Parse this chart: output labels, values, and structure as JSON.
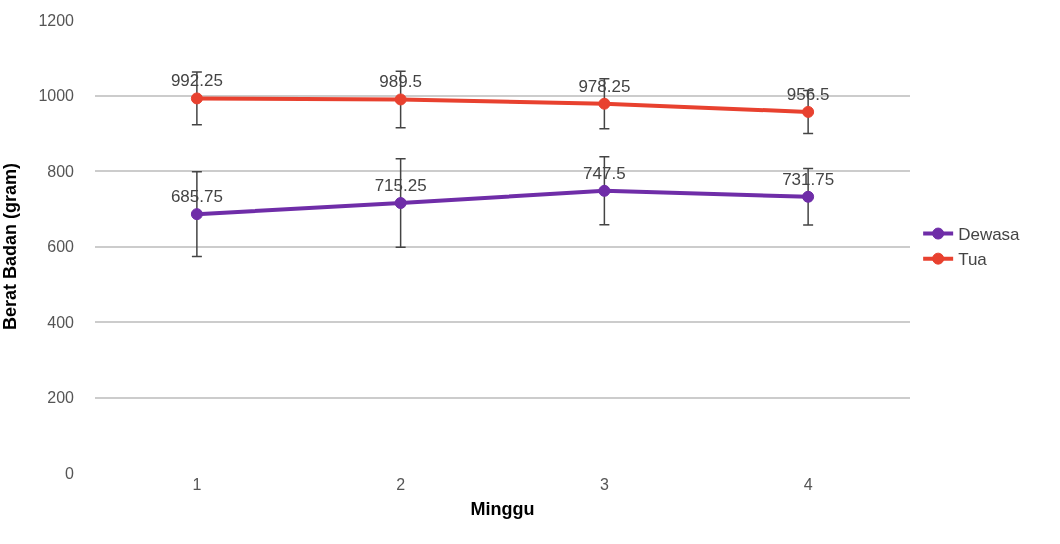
{
  "chart_data": {
    "type": "line",
    "xlabel": "Minggu",
    "ylabel": "Berat Badan (gram)",
    "categories": [
      "1",
      "2",
      "3",
      "4"
    ],
    "series": [
      {
        "name": "Dewasa",
        "color": "#6f2da8",
        "values": [
          685.75,
          715.25,
          747.5,
          731.75
        ],
        "errors": [
          112,
          117,
          90,
          75
        ]
      },
      {
        "name": "Tua",
        "color": "#e8412f",
        "values": [
          992.25,
          989.5,
          978.25,
          956.5
        ],
        "errors": [
          70,
          75,
          66,
          57
        ]
      }
    ],
    "ylim": [
      0,
      1200
    ],
    "yticks": [
      0,
      200,
      400,
      600,
      800,
      1000,
      1200
    ],
    "grid": "y",
    "legend": "right",
    "marker": "circle",
    "line_style": "solid",
    "data_labels": true
  }
}
